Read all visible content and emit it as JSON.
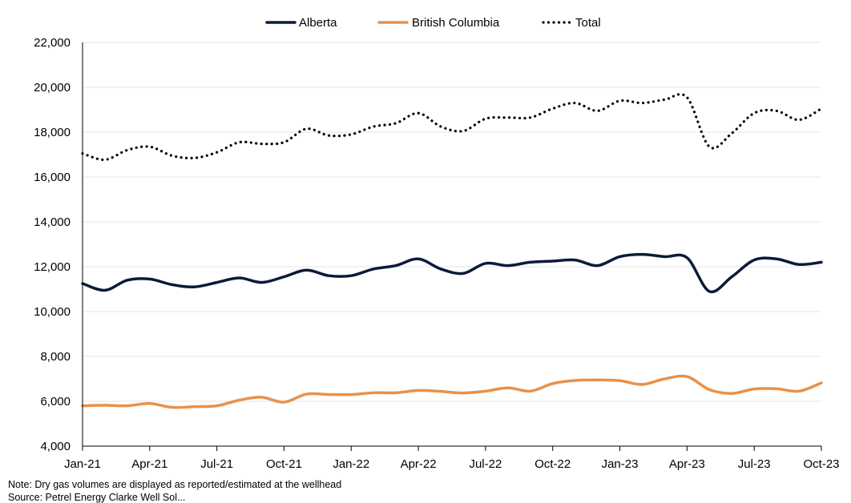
{
  "chart_data": {
    "type": "line",
    "title": "",
    "xlabel": "",
    "ylabel": "",
    "ylim": [
      4000,
      22000
    ],
    "yticks": [
      4000,
      6000,
      8000,
      10000,
      12000,
      14000,
      16000,
      18000,
      20000,
      22000
    ],
    "ytick_labels": [
      "4,000",
      "6,000",
      "8,000",
      "10,000",
      "12,000",
      "14,000",
      "16,000",
      "18,000",
      "20,000",
      "22,000"
    ],
    "categories": [
      "Jan-21",
      "Feb-21",
      "Mar-21",
      "Apr-21",
      "May-21",
      "Jun-21",
      "Jul-21",
      "Aug-21",
      "Sep-21",
      "Oct-21",
      "Nov-21",
      "Dec-21",
      "Jan-22",
      "Feb-22",
      "Mar-22",
      "Apr-22",
      "May-22",
      "Jun-22",
      "Jul-22",
      "Aug-22",
      "Sep-22",
      "Oct-22",
      "Nov-22",
      "Dec-22",
      "Jan-23",
      "Feb-23",
      "Mar-23",
      "Apr-23",
      "May-23",
      "Jun-23",
      "Jul-23",
      "Aug-23",
      "Sep-23",
      "Oct-23"
    ],
    "xtick_labels": [
      "Jan-21",
      "Apr-21",
      "Jul-21",
      "Oct-21",
      "Jan-22",
      "Apr-22",
      "Jul-22",
      "Oct-22",
      "Jan-23",
      "Apr-23",
      "Jul-23",
      "Oct-23"
    ],
    "grid": true,
    "legend_position": "top-center",
    "series": [
      {
        "name": "Alberta",
        "color": "#0c1a3a",
        "style": "solid",
        "values": [
          11250,
          10950,
          11400,
          11450,
          11200,
          11100,
          11300,
          11500,
          11300,
          11550,
          11850,
          11600,
          11600,
          11900,
          12050,
          12350,
          11900,
          11700,
          12150,
          12050,
          12200,
          12250,
          12300,
          12050,
          12450,
          12550,
          12450,
          12400,
          10900,
          11550,
          12300,
          12350,
          12100,
          12200
        ]
      },
      {
        "name": "British Columbia",
        "color": "#e8914a",
        "style": "solid",
        "values": [
          5800,
          5820,
          5800,
          5900,
          5730,
          5760,
          5800,
          6050,
          6180,
          5960,
          6320,
          6300,
          6300,
          6380,
          6380,
          6480,
          6440,
          6370,
          6450,
          6600,
          6450,
          6790,
          6930,
          6950,
          6920,
          6750,
          7000,
          7100,
          6520,
          6350,
          6550,
          6560,
          6450,
          6820
        ]
      },
      {
        "name": "Total",
        "color": "#000000",
        "style": "dotted",
        "values": [
          17050,
          16770,
          17200,
          17350,
          16950,
          16850,
          17100,
          17550,
          17480,
          17550,
          18150,
          17850,
          17900,
          18250,
          18400,
          18850,
          18250,
          18050,
          18600,
          18650,
          18650,
          19050,
          19300,
          18950,
          19400,
          19300,
          19450,
          19550,
          17350,
          17950,
          18850,
          18950,
          18550,
          19050
        ]
      }
    ]
  },
  "footnotes": {
    "note": "Note: Dry gas volumes are displayed as reported/estimated at the wellhead",
    "source": "Source: Petrel Energy Clarke Well Sol..."
  }
}
